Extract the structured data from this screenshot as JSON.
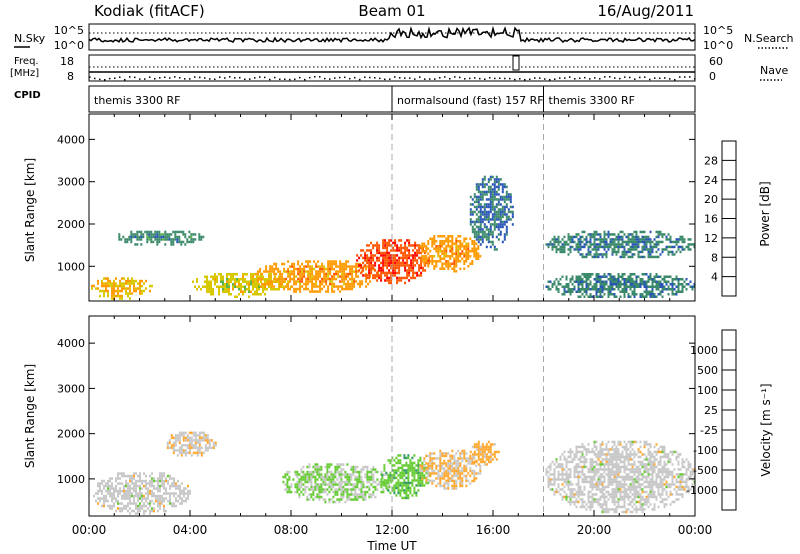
{
  "header": {
    "station": "Kodiak (fitACF)",
    "beam": "Beam 01",
    "date": "16/Aug/2011"
  },
  "summary": {
    "left_top_label": "N.Sky",
    "left_mid_label_1": "Freq.",
    "left_mid_label_2": "[MHz]",
    "cpid_label": "CPID",
    "right_top_label": "N.Search",
    "right_mid_label": "Nave",
    "left_ticks_top": [
      "10^5",
      "10^0"
    ],
    "left_ticks_freq": [
      "18",
      "8"
    ],
    "right_ticks_top": [
      "10^5",
      "10^0"
    ],
    "right_ticks_nave": [
      "60",
      "0"
    ],
    "cpid_segments": [
      {
        "start_hour": 0,
        "label": "themis 3300 RF"
      },
      {
        "start_hour": 12,
        "label": "normalsound (fast) 157 RF"
      },
      {
        "start_hour": 18,
        "label": "themis 3300 RF"
      }
    ]
  },
  "chart_data": [
    {
      "type": "heatmap",
      "parameter": "Power",
      "ylabel": "Slant Range [km]",
      "ylim": [
        180,
        4600
      ],
      "yticks": [
        "1000",
        "2000",
        "3000",
        "4000"
      ],
      "xlim_hours": [
        0,
        24
      ],
      "colorbar_label": "Power [dB]",
      "colorbar_ticks": [
        "4",
        "8",
        "12",
        "16",
        "20",
        "24",
        "28"
      ],
      "colors": [
        "#0000ff",
        "#2a55b8",
        "#3b8a6a",
        "#5ab54a",
        "#d8c800",
        "#ff9a00",
        "#ff5500",
        "#ff0000"
      ],
      "value_range": [
        0,
        32
      ],
      "echo_regions": [
        {
          "t0": 0.0,
          "t1": 2.5,
          "r0": 250,
          "r1": 800,
          "value": 20
        },
        {
          "t0": 1.0,
          "t1": 4.5,
          "r0": 1500,
          "r1": 1900,
          "value": 10
        },
        {
          "t0": 4.0,
          "t1": 8.0,
          "r0": 300,
          "r1": 900,
          "value": 18
        },
        {
          "t0": 6.5,
          "t1": 11.5,
          "r0": 400,
          "r1": 1200,
          "value": 22
        },
        {
          "t0": 10.5,
          "t1": 13.5,
          "r0": 600,
          "r1": 1700,
          "value": 27
        },
        {
          "t0": 13.0,
          "t1": 15.5,
          "r0": 900,
          "r1": 1800,
          "value": 22
        },
        {
          "t0": 15.0,
          "t1": 16.8,
          "r0": 1400,
          "r1": 3200,
          "value": 8
        },
        {
          "t0": 18.0,
          "t1": 24.0,
          "r0": 1200,
          "r1": 1900,
          "value": 9
        },
        {
          "t0": 18.0,
          "t1": 24.0,
          "r0": 250,
          "r1": 900,
          "value": 9
        }
      ]
    },
    {
      "type": "heatmap",
      "parameter": "Velocity",
      "ylabel": "Slant Range [km]",
      "ylim": [
        180,
        4600
      ],
      "yticks": [
        "1000",
        "2000",
        "3000",
        "4000"
      ],
      "xlim_hours": [
        0,
        24
      ],
      "xticks": [
        "00:00",
        "04:00",
        "08:00",
        "12:00",
        "16:00",
        "20:00",
        "00:00"
      ],
      "xlabel": "Time UT",
      "colorbar_label": "Velocity [m s⁻¹]",
      "colorbar_ticks": [
        "1000",
        "500",
        "100",
        "25",
        "-25",
        "-100",
        "-500",
        "-1000"
      ],
      "colors": [
        "#ff0000",
        "#ff4400",
        "#ff8800",
        "#ffa830",
        "#c8c8c8",
        "#66cc33",
        "#339966",
        "#336699",
        "#3333cc"
      ],
      "value_range": [
        -1200,
        1200
      ],
      "echo_regions": [
        {
          "t0": 0.0,
          "t1": 4.0,
          "r0": 250,
          "r1": 1200,
          "value": 0
        },
        {
          "t0": 3.0,
          "t1": 5.0,
          "r0": 1500,
          "r1": 2100,
          "value": -50
        },
        {
          "t0": 7.5,
          "t1": 12.0,
          "r0": 500,
          "r1": 1400,
          "value": 150
        },
        {
          "t0": 11.5,
          "t1": 13.5,
          "r0": 600,
          "r1": 1600,
          "value": 300
        },
        {
          "t0": 13.0,
          "t1": 15.5,
          "r0": 800,
          "r1": 1700,
          "value": -150
        },
        {
          "t0": 15.0,
          "t1": 16.2,
          "r0": 1300,
          "r1": 1900,
          "value": -200
        },
        {
          "t0": 18.0,
          "t1": 24.0,
          "r0": 250,
          "r1": 1900,
          "value": 0
        }
      ]
    }
  ]
}
